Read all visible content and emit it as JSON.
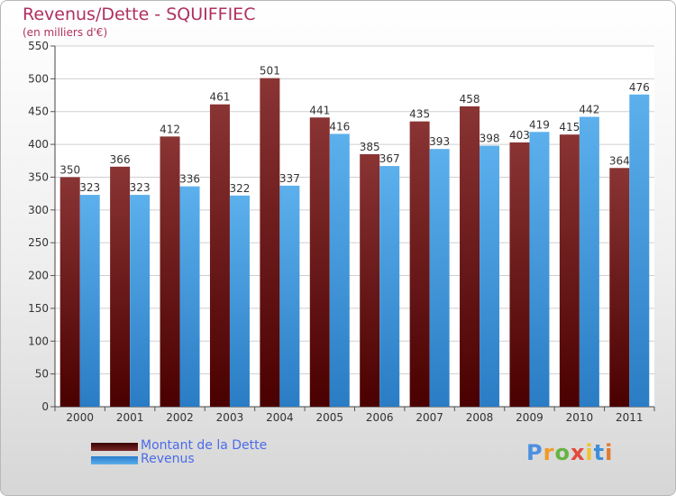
{
  "chart_data": {
    "type": "bar",
    "title": "Revenus/Dette - SQUIFFIEC",
    "subtitle": "(en milliers d'€)",
    "xlabel": "",
    "ylabel": "",
    "ylim": [
      0,
      550
    ],
    "yticks": [
      0,
      50,
      100,
      150,
      200,
      250,
      300,
      350,
      400,
      450,
      500,
      550
    ],
    "grid": true,
    "legend_position": "bottom-left",
    "categories": [
      "2000",
      "2001",
      "2002",
      "2003",
      "2004",
      "2005",
      "2006",
      "2007",
      "2008",
      "2009",
      "2010",
      "2011"
    ],
    "series": [
      {
        "name": "Montant de la Dette",
        "color": "#7a2a2a",
        "values": [
          350,
          366,
          412,
          461,
          501,
          441,
          385,
          435,
          458,
          403,
          415,
          364
        ]
      },
      {
        "name": "Revenus",
        "color": "#5aaeea",
        "values": [
          323,
          323,
          336,
          322,
          337,
          416,
          367,
          393,
          398,
          419,
          442,
          476
        ]
      }
    ]
  },
  "branding": {
    "logo_text": [
      "P",
      "r",
      "o",
      "x",
      "i",
      "t",
      "i"
    ]
  }
}
